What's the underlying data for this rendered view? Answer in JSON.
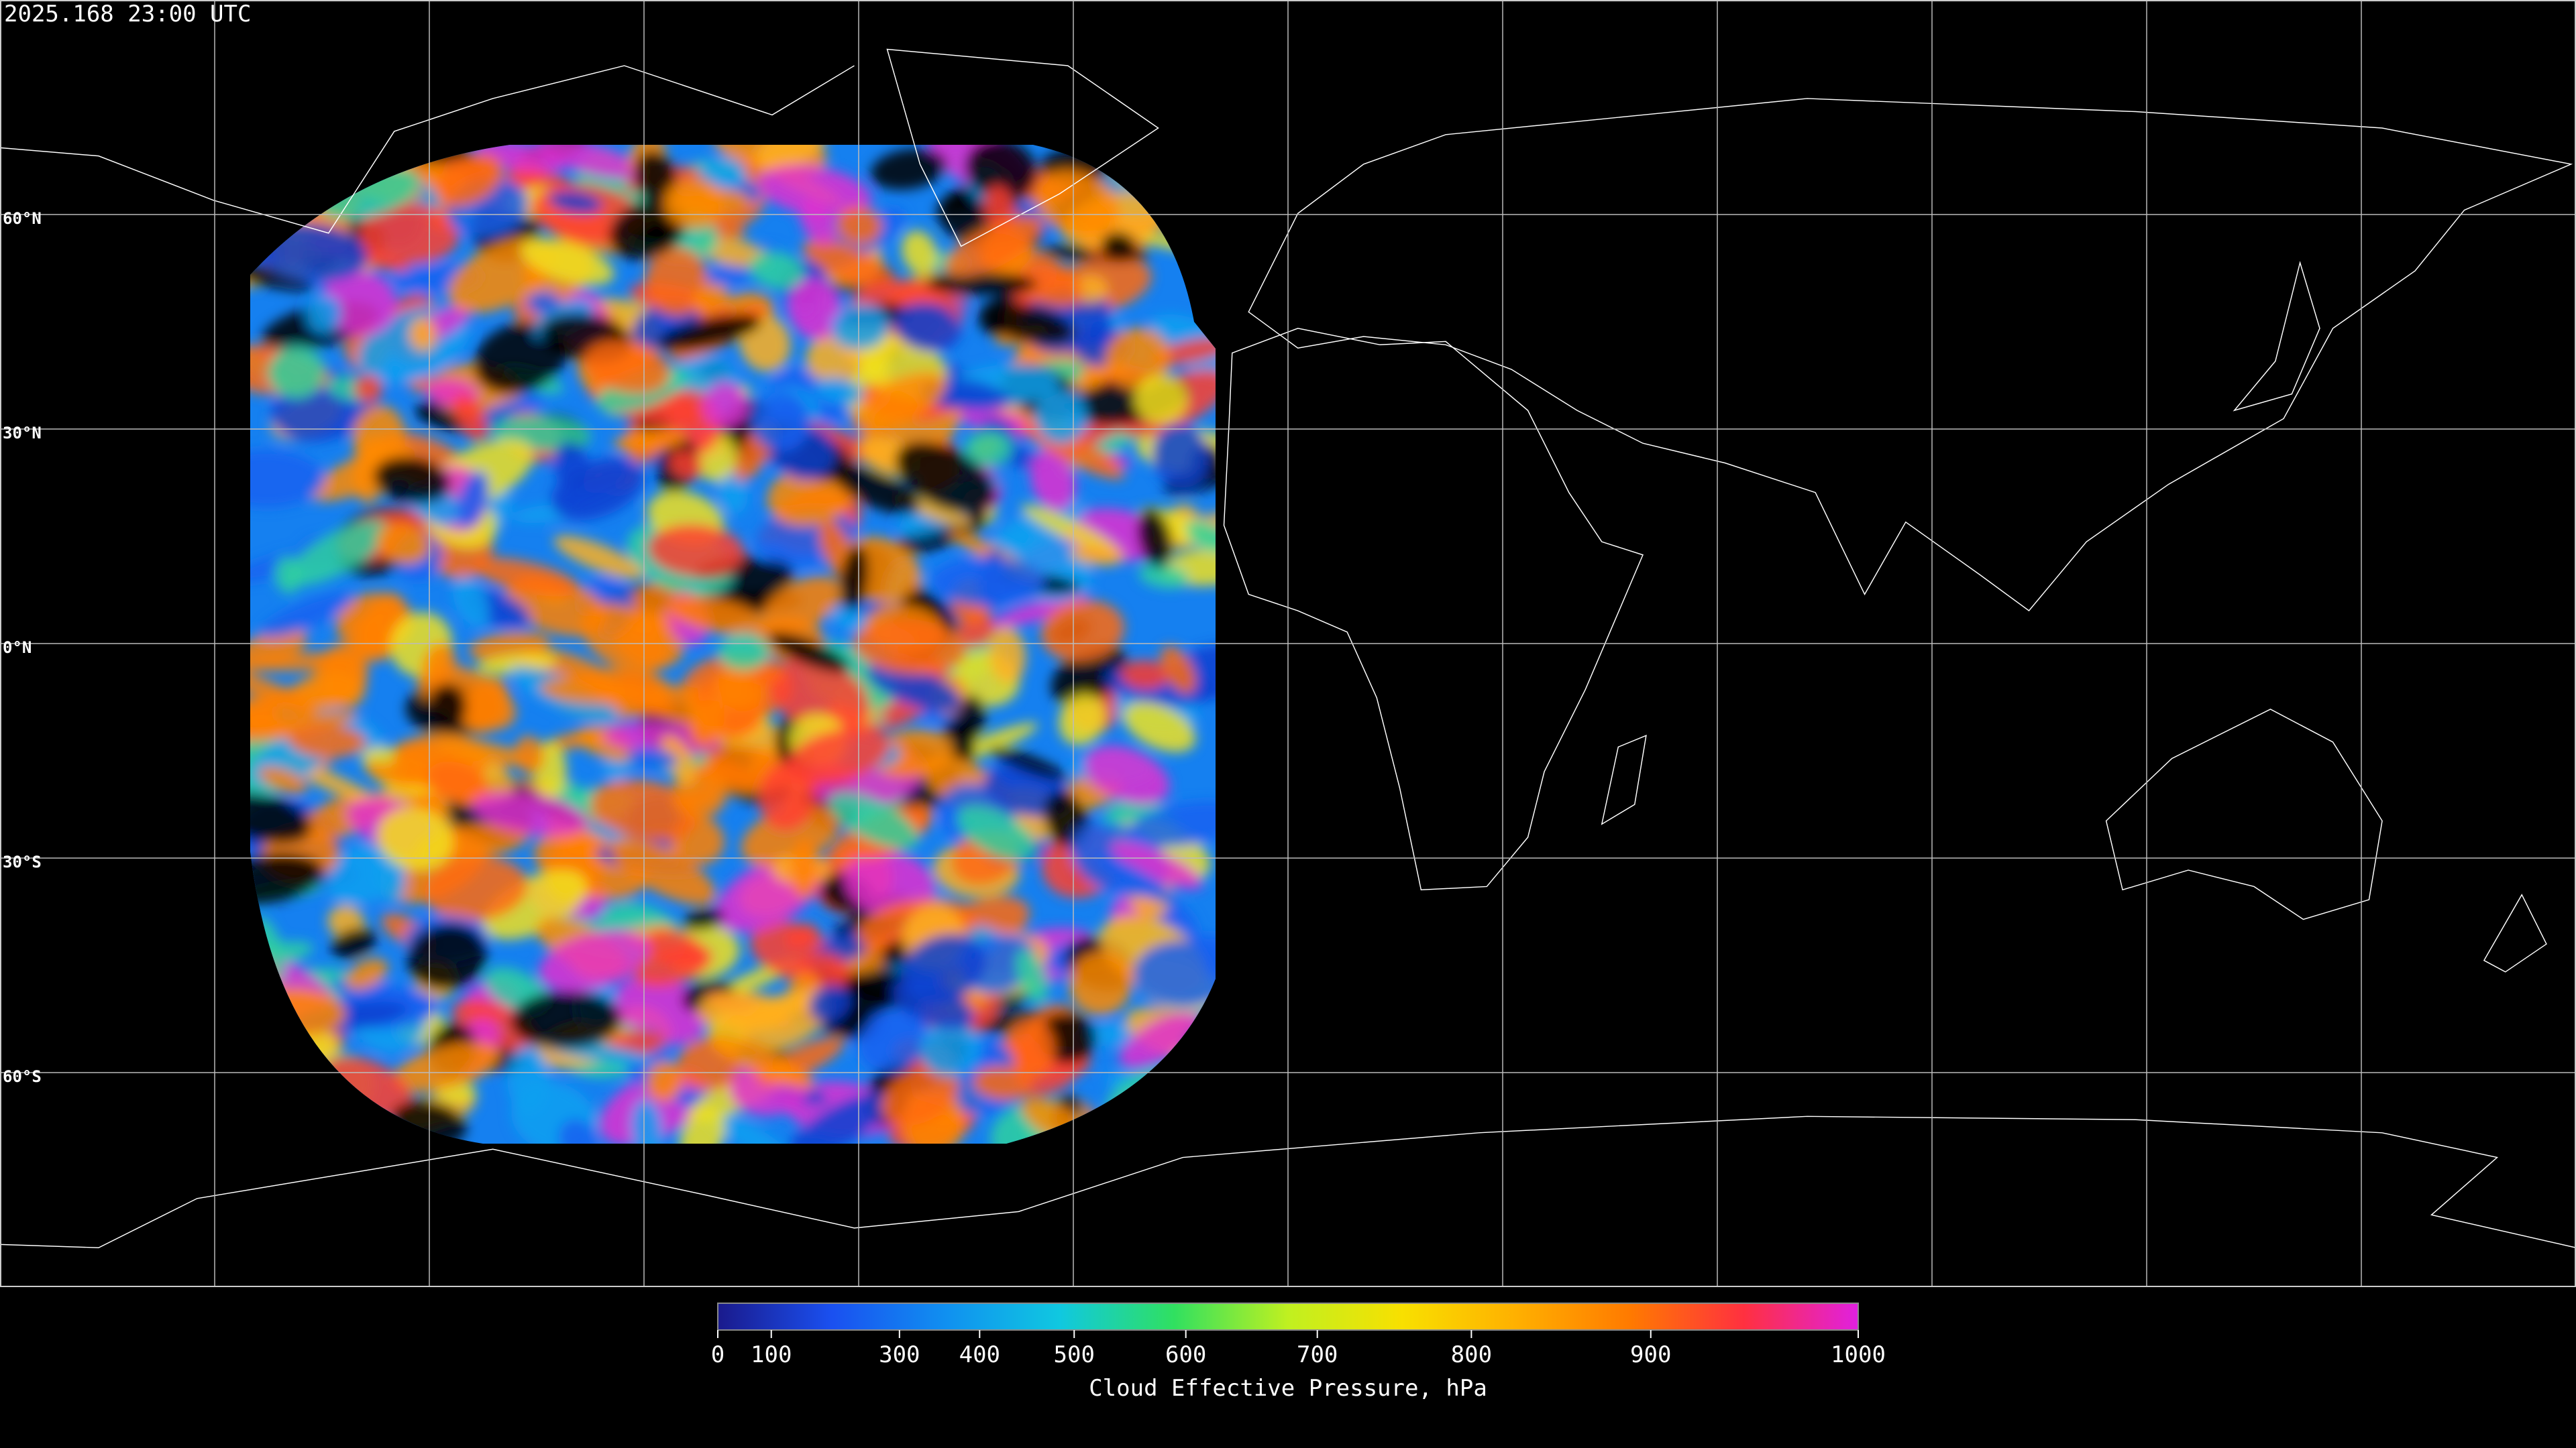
{
  "timestamp": "2025.168 23:00 UTC",
  "map": {
    "lonlim": [
      -180,
      180
    ],
    "latlim": [
      -90,
      90
    ],
    "lon_lines": [
      -150,
      -120,
      -90,
      -60,
      -30,
      0,
      30,
      60,
      90,
      120,
      150
    ],
    "lat_lines": [
      {
        "value": 60,
        "label": "60°N"
      },
      {
        "value": 30,
        "label": "30°N"
      },
      {
        "value": 0,
        "label": "0°N"
      },
      {
        "value": -30,
        "label": "30°S"
      },
      {
        "value": -60,
        "label": "60°S"
      }
    ]
  },
  "colorbar": {
    "label": "Cloud Effective Pressure, hPa",
    "range": [
      0,
      1000
    ],
    "ticks": [
      0,
      100,
      300,
      400,
      500,
      600,
      700,
      800,
      900,
      1000
    ],
    "colors": [
      "#1a1a8c",
      "#1a50f0",
      "#1090f0",
      "#10c8e0",
      "#30e060",
      "#c0f020",
      "#f8e000",
      "#ffb000",
      "#ff7a00",
      "#ff3040",
      "#e020e0"
    ]
  }
}
